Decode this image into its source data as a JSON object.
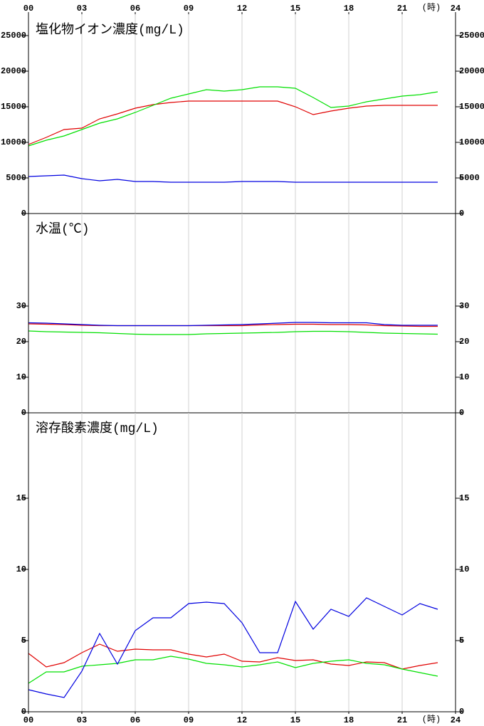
{
  "chart_data": [
    {
      "type": "line",
      "title": "塩化物イオン濃度(mg/L)",
      "x_labels": "top",
      "x_unit": "(時)",
      "xlim": [
        0,
        24
      ],
      "xticks": [
        {
          "value": 0,
          "label": "00"
        },
        {
          "value": 3,
          "label": "03"
        },
        {
          "value": 6,
          "label": "06"
        },
        {
          "value": 9,
          "label": "09"
        },
        12,
        15,
        18,
        21,
        24
      ],
      "ylim": [
        0,
        28000
      ],
      "yticks": [
        0,
        5000,
        10000,
        15000,
        20000,
        25000
      ],
      "grid": true,
      "x": [
        0,
        1,
        2,
        3,
        4,
        5,
        6,
        7,
        8,
        9,
        10,
        11,
        12,
        13,
        14,
        15,
        16,
        17,
        18,
        19,
        20,
        21,
        22,
        23
      ],
      "series": [
        {
          "color": "#e00000",
          "values": [
            9700,
            10700,
            11800,
            12000,
            13300,
            14000,
            14800,
            15300,
            15600,
            15800,
            15800,
            15800,
            15800,
            15800,
            15800,
            15000,
            13900,
            14400,
            14800,
            15100,
            15200,
            15200,
            15200,
            15200
          ]
        },
        {
          "color": "#00e000",
          "values": [
            9500,
            10300,
            10900,
            11800,
            12700,
            13300,
            14200,
            15200,
            16200,
            16800,
            17400,
            17200,
            17400,
            17800,
            17800,
            17600,
            16300,
            14900,
            15100,
            15700,
            16100,
            16500,
            16700,
            17100
          ]
        },
        {
          "color": "#0000e0",
          "values": [
            5200,
            5300,
            5400,
            4900,
            4600,
            4800,
            4500,
            4500,
            4400,
            4400,
            4400,
            4400,
            4500,
            4500,
            4500,
            4400,
            4400,
            4400,
            4400,
            4400,
            4400,
            4400,
            4400,
            4400
          ]
        }
      ]
    },
    {
      "type": "line",
      "title": "水温(℃)",
      "x_labels": "none",
      "xlim": [
        0,
        24
      ],
      "xticks": [
        {
          "value": 0,
          "label": "00"
        },
        {
          "value": 3,
          "label": "03"
        },
        {
          "value": 6,
          "label": "06"
        },
        {
          "value": 9,
          "label": "09"
        },
        12,
        15,
        18,
        21,
        24
      ],
      "ylim": [
        0,
        56
      ],
      "yticks": [
        0,
        10,
        20,
        30
      ],
      "grid": true,
      "x": [
        0,
        1,
        2,
        3,
        4,
        5,
        6,
        7,
        8,
        9,
        10,
        11,
        12,
        13,
        14,
        15,
        16,
        17,
        18,
        19,
        20,
        21,
        22,
        23
      ],
      "series": [
        {
          "color": "#e00000",
          "values": [
            25.0,
            24.9,
            24.8,
            24.6,
            24.5,
            24.5,
            24.5,
            24.5,
            24.5,
            24.5,
            24.5,
            24.5,
            24.5,
            24.7,
            24.8,
            24.9,
            24.9,
            24.8,
            24.8,
            24.7,
            24.5,
            24.4,
            24.3,
            24.3
          ]
        },
        {
          "color": "#00e000",
          "values": [
            23.0,
            22.8,
            22.7,
            22.6,
            22.5,
            22.3,
            22.1,
            22.0,
            22.0,
            22.0,
            22.2,
            22.3,
            22.4,
            22.5,
            22.6,
            22.8,
            22.9,
            22.9,
            22.8,
            22.6,
            22.4,
            22.3,
            22.2,
            22.1
          ]
        },
        {
          "color": "#0000e0",
          "values": [
            25.3,
            25.2,
            25.0,
            24.8,
            24.6,
            24.5,
            24.5,
            24.5,
            24.5,
            24.5,
            24.6,
            24.7,
            24.8,
            25.0,
            25.2,
            25.4,
            25.4,
            25.3,
            25.3,
            25.3,
            24.8,
            24.6,
            24.6,
            24.6
          ]
        }
      ]
    },
    {
      "type": "line",
      "title": "溶存酸素濃度(mg/L)",
      "x_labels": "bottom",
      "x_unit": "(時)",
      "xlim": [
        0,
        24
      ],
      "xticks": [
        {
          "value": 0,
          "label": "00"
        },
        {
          "value": 3,
          "label": "03"
        },
        {
          "value": 6,
          "label": "06"
        },
        {
          "value": 9,
          "label": "09"
        },
        12,
        15,
        18,
        21,
        24
      ],
      "ylim": [
        0,
        21
      ],
      "yticks": [
        0,
        5,
        10,
        15
      ],
      "grid": true,
      "x": [
        0,
        1,
        2,
        3,
        4,
        5,
        6,
        7,
        8,
        9,
        10,
        11,
        12,
        13,
        14,
        15,
        16,
        17,
        18,
        19,
        20,
        21,
        22,
        23
      ],
      "series": [
        {
          "color": "#e00000",
          "values": [
            4.1,
            3.15,
            3.45,
            4.15,
            4.75,
            4.25,
            4.4,
            4.35,
            4.35,
            4.05,
            3.85,
            4.05,
            3.55,
            3.5,
            3.8,
            3.6,
            3.65,
            3.35,
            3.25,
            3.5,
            3.45,
            3.0,
            3.25,
            3.45
          ]
        },
        {
          "color": "#00e000",
          "values": [
            2.0,
            2.8,
            2.8,
            3.2,
            3.3,
            3.4,
            3.65,
            3.65,
            3.9,
            3.7,
            3.4,
            3.3,
            3.15,
            3.3,
            3.5,
            3.1,
            3.4,
            3.55,
            3.65,
            3.4,
            3.3,
            3.0,
            2.75,
            2.5
          ]
        },
        {
          "color": "#0000e0",
          "values": [
            1.55,
            1.25,
            1.0,
            2.85,
            5.5,
            3.35,
            5.7,
            6.6,
            6.6,
            7.6,
            7.7,
            7.6,
            6.25,
            4.15,
            4.15,
            7.75,
            5.8,
            7.2,
            6.7,
            8.0,
            7.4,
            6.8,
            7.6,
            7.2
          ]
        }
      ]
    }
  ]
}
